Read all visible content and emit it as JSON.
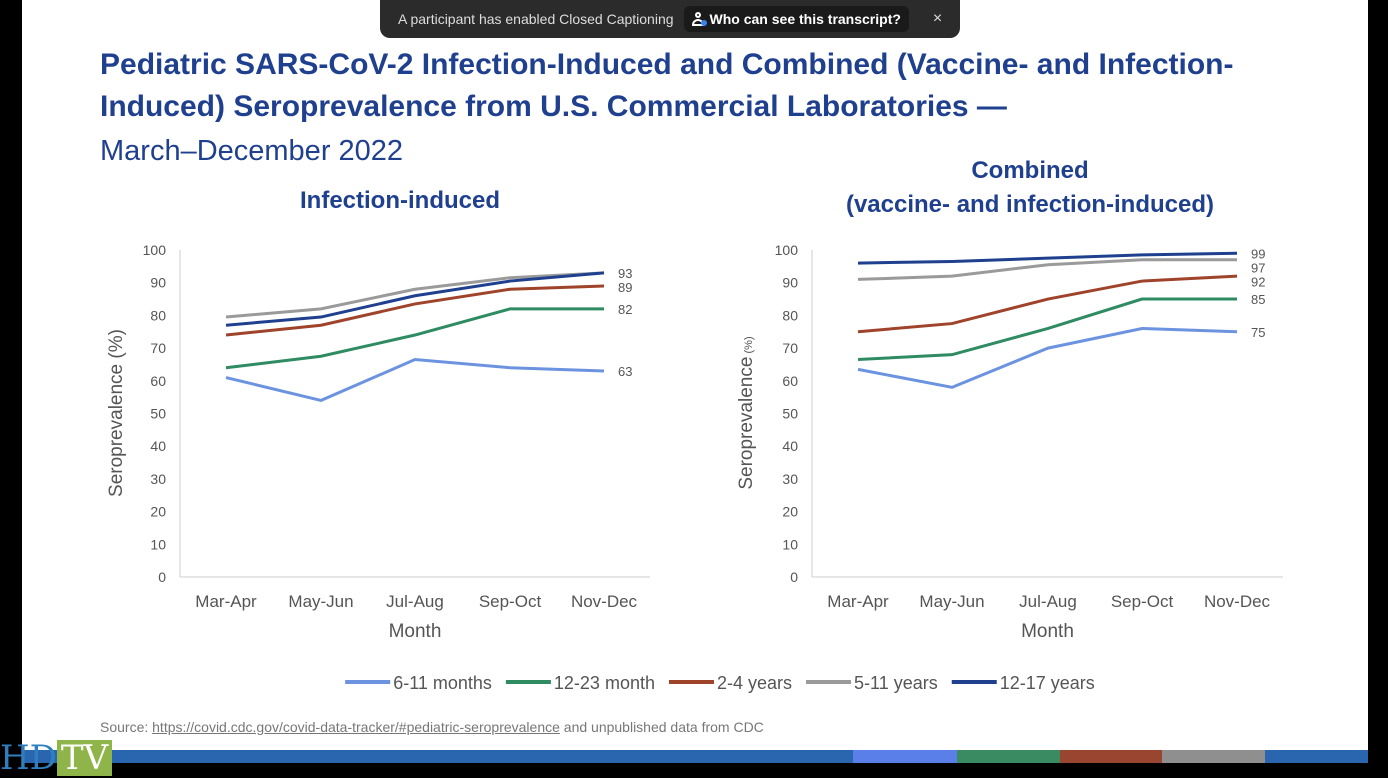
{
  "banner": {
    "message": "A participant has enabled Closed Captioning",
    "who_label": "Who can see this transcript?",
    "close": "×"
  },
  "slide": {
    "title": "Pediatric SARS-CoV-2 Infection-Induced and Combined (Vaccine- and Infection-Induced) Seroprevalence from U.S. Commercial Laboratories —",
    "subtitle": "March–December 2022",
    "source_prefix": "Source: ",
    "source_link": "https://covid.cdc.gov/covid-data-tracker/#pediatric-seroprevalence",
    "source_suffix": " and unpublished data from CDC"
  },
  "logo": {
    "hd": "HD",
    "tv": "TV"
  },
  "stripe_colors": [
    "#2a66b0",
    "#5b7fe8",
    "#3a8a62",
    "#9a4530",
    "#8f8f8f",
    "#2a66b0"
  ],
  "legend": [
    {
      "label": "6-11 months",
      "color": "#6b93e0"
    },
    {
      "label": "12-23 month",
      "color": "#2e8b62"
    },
    {
      "label": "2-4 years",
      "color": "#a0432b"
    },
    {
      "label": "5-11 years",
      "color": "#9a9a9a"
    },
    {
      "label": "12-17 years",
      "color": "#1f3f8f"
    }
  ],
  "chart_data": [
    {
      "type": "line",
      "title": "Infection-induced",
      "xlabel": "Month",
      "ylabel": "Seroprevalence (%)",
      "categories": [
        "Mar-Apr",
        "May-Jun",
        "Jul-Aug",
        "Sep-Oct",
        "Nov-Dec"
      ],
      "ylim": [
        0,
        100
      ],
      "yticks": [
        0,
        10,
        20,
        30,
        40,
        50,
        60,
        70,
        80,
        90,
        100
      ],
      "grid": false,
      "legend": "bottom",
      "series": [
        {
          "name": "6-11 months",
          "values": [
            61,
            54,
            66.5,
            64,
            63
          ],
          "end_label": "63"
        },
        {
          "name": "12-23 month",
          "values": [
            64,
            67.5,
            74,
            82,
            82
          ],
          "end_label": "82"
        },
        {
          "name": "2-4 years",
          "values": [
            74,
            77,
            83.5,
            88,
            89
          ],
          "end_label": "89"
        },
        {
          "name": "5-11 years",
          "values": [
            79.5,
            82,
            88,
            91.5,
            93
          ],
          "end_label": ""
        },
        {
          "name": "12-17 years",
          "values": [
            77,
            79.5,
            86,
            90.5,
            93
          ],
          "end_label": "93"
        }
      ]
    },
    {
      "type": "line",
      "title": "Combined (vaccine- and infection-induced)",
      "title_line1": "Combined",
      "title_line2": "(vaccine- and infection-induced)",
      "xlabel": "Month",
      "ylabel": "Seroprevalence",
      "ylabel_unit": "(%)",
      "categories": [
        "Mar-Apr",
        "May-Jun",
        "Jul-Aug",
        "Sep-Oct",
        "Nov-Dec"
      ],
      "ylim": [
        0,
        100
      ],
      "yticks": [
        0,
        10,
        20,
        30,
        40,
        50,
        60,
        70,
        80,
        90,
        100
      ],
      "grid": false,
      "legend": "bottom",
      "series": [
        {
          "name": "6-11 months",
          "values": [
            63.5,
            58,
            70,
            76,
            75
          ],
          "end_label": "75"
        },
        {
          "name": "12-23 month",
          "values": [
            66.5,
            68,
            76,
            85,
            85
          ],
          "end_label": "85"
        },
        {
          "name": "2-4 years",
          "values": [
            75,
            77.5,
            85,
            90.5,
            92
          ],
          "end_label": "92"
        },
        {
          "name": "5-11 years",
          "values": [
            91,
            92,
            95.5,
            97,
            97
          ],
          "end_label": "97"
        },
        {
          "name": "12-17 years",
          "values": [
            96,
            96.5,
            97.5,
            98.5,
            99
          ],
          "end_label": "99"
        }
      ]
    }
  ]
}
